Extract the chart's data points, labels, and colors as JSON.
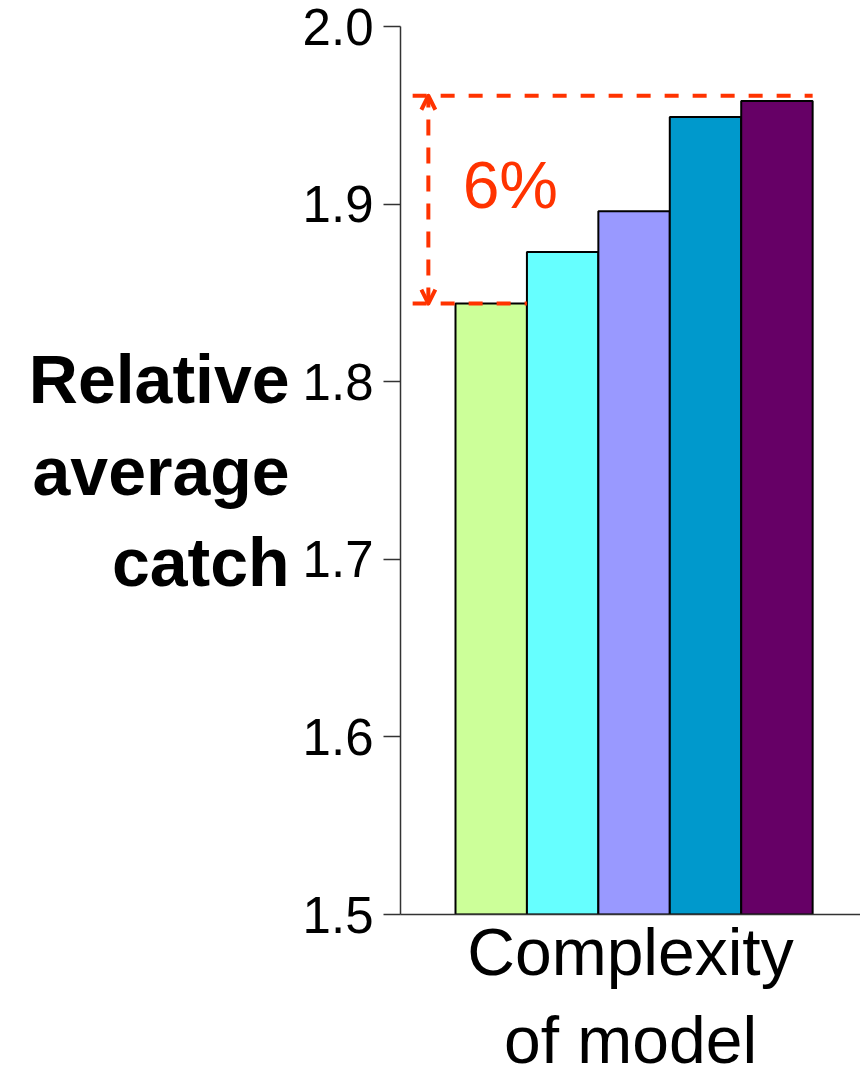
{
  "chart_data": {
    "type": "bar",
    "xlabel": "Complexity of model",
    "ylabel": "Relative average catch",
    "categories": [
      null,
      null,
      null,
      null,
      null
    ],
    "values": [
      1.844,
      1.873,
      1.896,
      1.949,
      1.958
    ],
    "colors": [
      "#ccff99",
      "#66ffff",
      "#9999ff",
      "#0099cc",
      "#660066"
    ],
    "ylim": [
      1.5,
      2.0
    ],
    "yticks": [
      1.5,
      1.6,
      1.7,
      1.8,
      1.9,
      {
        "value": 2.0,
        "label": "2.0"
      }
    ],
    "ref_lines": [
      {
        "axis": "y",
        "value": 1.844,
        "color": "#ff3300",
        "line_style": "dashed"
      },
      {
        "axis": "y",
        "value": 1.961,
        "color": "#ff3300",
        "line_style": "dashed"
      }
    ],
    "annotations": [
      "6%"
    ],
    "tick_labels": "y"
  }
}
